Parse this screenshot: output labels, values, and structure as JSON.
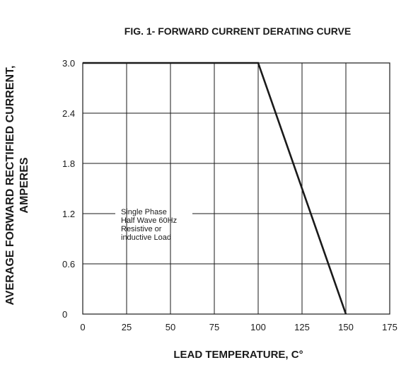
{
  "chart_data": {
    "type": "line",
    "title": "FIG. 1- FORWARD CURRENT DERATING CURVE",
    "xlabel": "LEAD TEMPERATURE,  C°",
    "ylabel_lines": [
      "AVERAGE FORWARD RECTIFIED CURRENT,",
      "AMPERES"
    ],
    "x_ticks": [
      "0",
      "25",
      "50",
      "75",
      "100",
      "125",
      "150",
      "175"
    ],
    "y_ticks": [
      "0",
      "0.6",
      "1.2",
      "1.8",
      "2.4",
      "3.0"
    ],
    "xlim": [
      0,
      175
    ],
    "ylim": [
      0,
      3.0
    ],
    "grid": true,
    "series": [
      {
        "x": [
          0,
          100,
          150
        ],
        "y": [
          3.0,
          3.0,
          0
        ]
      }
    ],
    "annotation_lines": [
      "Single Phase",
      "Half Wave 60Hz",
      "Resistive or",
      "inductive Load"
    ],
    "colors": {
      "line": "#1a1a1a",
      "grid": "#1a1a1a"
    }
  }
}
